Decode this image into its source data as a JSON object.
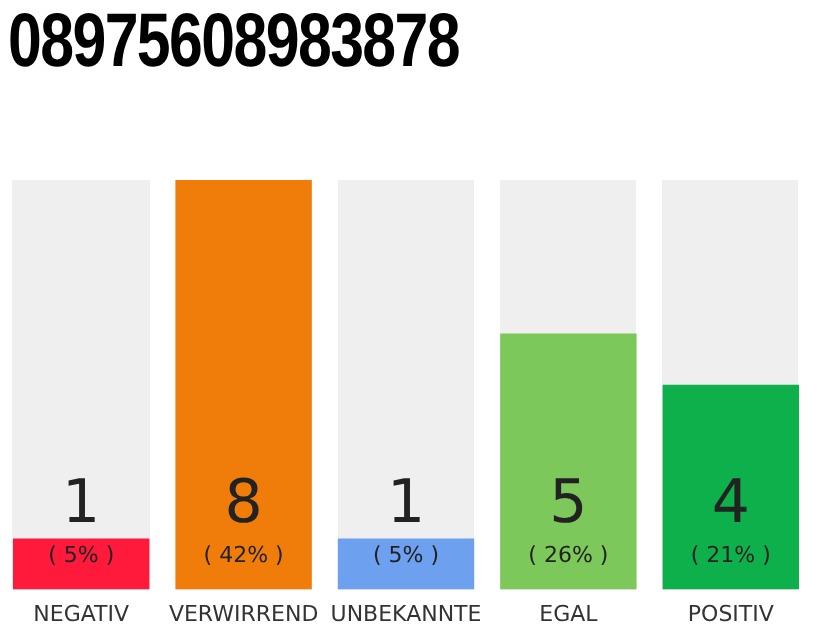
{
  "chart_data": {
    "type": "bar",
    "title": "08975608983878",
    "categories": [
      "NEGATIV",
      "VERWIRREND",
      "UNBEKANNTE",
      "EGAL",
      "POSITIV"
    ],
    "values": [
      1,
      8,
      1,
      5,
      4
    ],
    "colors": [
      "#ff1a3c",
      "#f07d0a",
      "#6ea0f0",
      "#7dc85a",
      "#0db04b"
    ],
    "ylim": [
      0,
      8
    ],
    "data_labels": true,
    "grid": false,
    "legend": false,
    "tick_labels": "x",
    "annotations": [
      "( 5% )",
      "( 42% )",
      "( 5% )",
      "( 26% )",
      "( 21% )"
    ]
  }
}
